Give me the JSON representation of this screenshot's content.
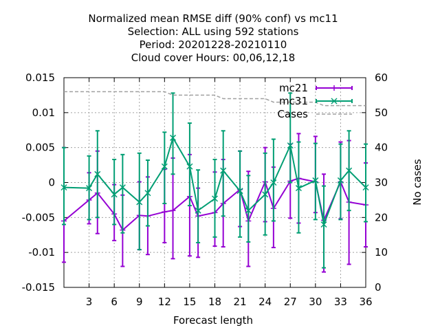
{
  "chart_data": {
    "type": "line",
    "title": [
      "Normalized mean RMSE diff (90% conf) vs mc11",
      "Selection: ALL using   592 stations",
      "Period: 20201228-20210110",
      "Cloud cover   Hours:  00,06,12,18"
    ],
    "xlabel": "Forecast length",
    "ylabel": "",
    "y2label": "No cases",
    "xlim": [
      0,
      36
    ],
    "ylim": [
      -0.015,
      0.015
    ],
    "y2lim": [
      0,
      60
    ],
    "xticks": [
      3,
      6,
      9,
      12,
      15,
      18,
      21,
      24,
      27,
      30,
      33,
      36
    ],
    "xtick_labels": [
      "3",
      "6",
      "9",
      "12",
      "15",
      "18",
      "21",
      "24",
      "27",
      "30",
      "33",
      "36"
    ],
    "yticks": [
      -0.015,
      -0.01,
      -0.005,
      0,
      0.005,
      0.01,
      0.015
    ],
    "ytick_labels": [
      "-0.015",
      "-0.01",
      "-0.005",
      "0",
      "0.005",
      "0.01",
      "0.015"
    ],
    "y2ticks": [
      0,
      10,
      20,
      30,
      40,
      50,
      60
    ],
    "y2tick_labels": [
      "0",
      "10",
      "20",
      "30",
      "40",
      "50",
      "60"
    ],
    "grid": true,
    "legend_position": "top-right",
    "series": [
      {
        "name": "mc21",
        "color": "#9400d3",
        "marker": "plus",
        "axis": "y",
        "x": [
          0,
          3,
          4,
          6,
          7,
          9,
          10,
          12,
          13,
          15,
          16,
          18,
          19,
          21,
          22,
          24,
          25,
          27,
          28,
          30,
          31,
          33,
          34,
          36
        ],
        "y": [
          -0.0055,
          -0.0025,
          -0.0015,
          -0.0045,
          -0.0068,
          -0.0047,
          -0.0048,
          -0.0042,
          -0.004,
          -0.002,
          -0.0048,
          -0.0043,
          -0.003,
          -0.001,
          -0.0055,
          0.0001,
          -0.0037,
          0.0002,
          0.0006,
          0.0001,
          -0.0054,
          0.0001,
          -0.0028,
          -0.0032
        ],
        "err_low": [
          -0.0114,
          -0.0059,
          -0.0073,
          -0.0083,
          -0.012,
          -0.0096,
          -0.0103,
          -0.0086,
          -0.0109,
          -0.0105,
          -0.0107,
          -0.0091,
          -0.0092,
          -0.0063,
          -0.012,
          -0.0056,
          -0.0093,
          -0.0051,
          -0.0058,
          -0.0043,
          -0.0128,
          -0.0052,
          -0.0117,
          -0.0092
        ],
        "err_high": [
          0.005,
          0.0014,
          0.0045,
          -0.0003,
          -0.0018,
          0.0001,
          0.0008,
          0.0019,
          0.0035,
          0.004,
          -0.0008,
          0.0015,
          0.0033,
          0.0045,
          0.0016,
          0.005,
          0.0022,
          0.0055,
          0.007,
          0.0066,
          0.0012,
          0.0058,
          0.006,
          0.0028
        ]
      },
      {
        "name": "mc31",
        "color": "#009e73",
        "marker": "cross",
        "axis": "y",
        "x": [
          0,
          3,
          4,
          6,
          7,
          9,
          10,
          12,
          13,
          15,
          16,
          18,
          19,
          21,
          22,
          24,
          25,
          27,
          28,
          30,
          31,
          33,
          34,
          36
        ],
        "y": [
          -0.0007,
          -0.0008,
          0.0012,
          -0.0017,
          -0.0007,
          -0.0028,
          -0.0015,
          0.0023,
          0.0064,
          0.0023,
          -0.004,
          -0.0023,
          0.0017,
          -0.0012,
          -0.004,
          -0.0017,
          0.0,
          0.0053,
          -0.0008,
          0.0003,
          -0.006,
          0.0003,
          0.0017,
          -0.0007
        ],
        "err_low": [
          -0.006,
          -0.0053,
          -0.005,
          -0.006,
          -0.0072,
          -0.0096,
          -0.0062,
          -0.003,
          0.0012,
          -0.0033,
          -0.0086,
          -0.0078,
          -0.0048,
          -0.0078,
          -0.0085,
          -0.0075,
          -0.0055,
          0.0,
          -0.0072,
          -0.0053,
          -0.0122,
          -0.0053,
          -0.004,
          -0.0056
        ],
        "err_high": [
          0.005,
          0.0038,
          0.0074,
          0.0033,
          0.004,
          0.0042,
          0.0032,
          0.0072,
          0.0128,
          0.0085,
          0.0018,
          0.0033,
          0.0074,
          0.0045,
          0.001,
          0.0042,
          0.0062,
          0.0128,
          0.0058,
          0.0056,
          -0.0005,
          0.0055,
          0.0074,
          0.0055
        ]
      },
      {
        "name": "Cases",
        "color": "#a0a0a0",
        "marker": "none",
        "axis": "y2",
        "x": [
          0,
          12,
          13,
          18,
          19,
          24,
          25,
          30,
          31,
          36
        ],
        "y": [
          56,
          56,
          55,
          55,
          54,
          54,
          53,
          53,
          52,
          52
        ]
      }
    ]
  }
}
